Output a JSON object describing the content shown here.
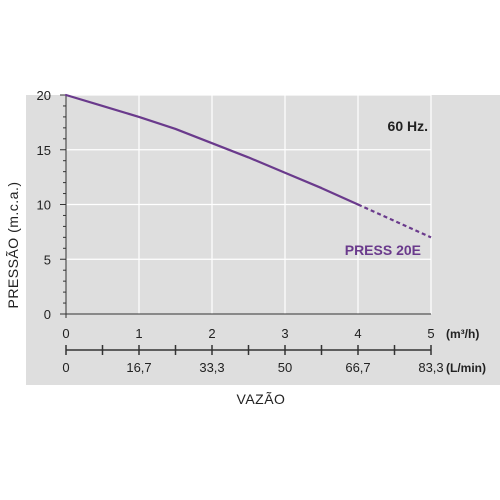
{
  "chart_data": {
    "type": "line",
    "ylabel": "PRESSÃO (m.c.a.)",
    "xlabel": "VAZÃO",
    "annotation": "60 Hz.",
    "colors": {
      "series": "#6a3a8c",
      "panel": "#dedede",
      "grid": "#ffffff",
      "axis": "#333333"
    },
    "ylim": [
      0,
      20
    ],
    "y_ticks": [
      "0",
      "5",
      "10",
      "15",
      "20"
    ],
    "xlim": [
      0,
      5
    ],
    "x_axis_primary": {
      "unit": "(m³/h)",
      "ticks": [
        "0",
        "1",
        "2",
        "3",
        "4",
        "5"
      ]
    },
    "x_axis_secondary": {
      "unit": "(L/min)",
      "ticks": [
        "0",
        "16,7",
        "33,3",
        "50",
        "66,7",
        "83,3"
      ]
    },
    "grid": true,
    "series": [
      {
        "name": "PRESS 20E",
        "x": [
          0,
          0.5,
          1,
          1.5,
          2,
          2.5,
          3,
          3.5,
          4
        ],
        "y": [
          20,
          19.0,
          18.0,
          16.9,
          15.6,
          14.3,
          12.9,
          11.5,
          10.0
        ],
        "extrapolated": {
          "x": [
            4,
            4.5,
            5
          ],
          "y": [
            10.0,
            8.5,
            7.0
          ]
        }
      }
    ]
  }
}
